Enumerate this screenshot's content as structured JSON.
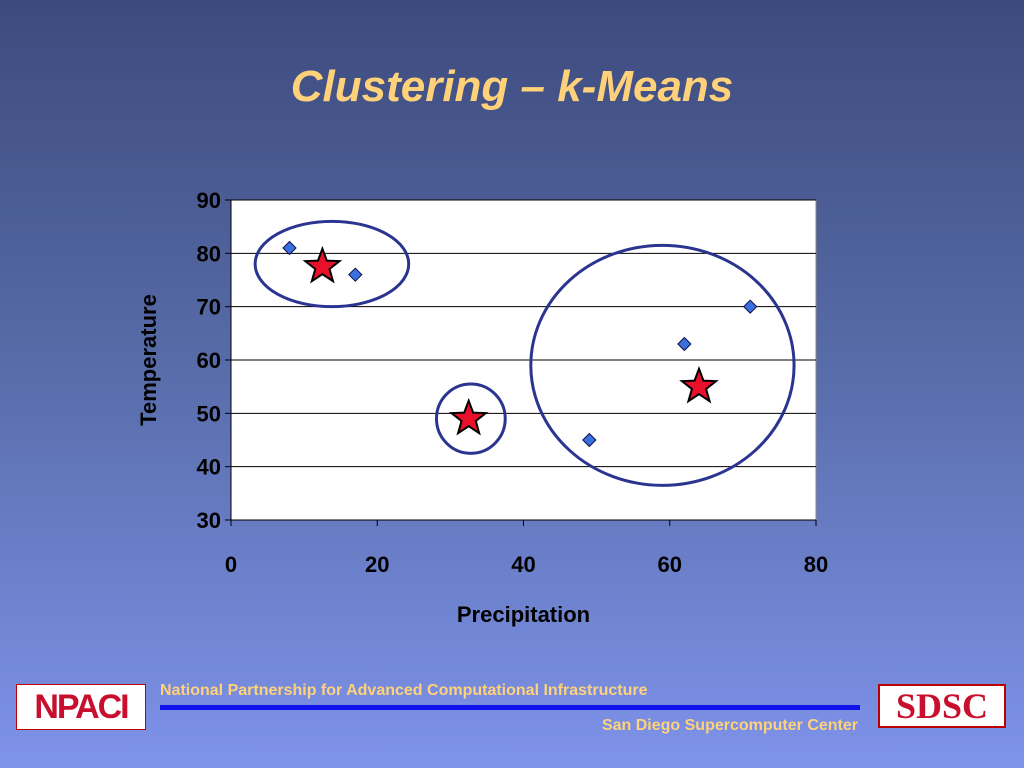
{
  "slide": {
    "title": "Clustering – k-Means",
    "footer_line1": "National Partnership for Advanced Computational Infrastructure",
    "footer_line2": "San Diego Supercomputer Center",
    "logo_left": "NPACI",
    "logo_right": "SDSC"
  },
  "colors": {
    "title": "#ffd27a",
    "point": "#3a6fe0",
    "star": "#e8102a",
    "circle": "#2b3590",
    "rule": "#1111ee"
  },
  "chart_data": {
    "type": "scatter",
    "xlabel": "Precipitation",
    "ylabel": "Temperature",
    "xlim": [
      0,
      80
    ],
    "ylim": [
      30,
      90
    ],
    "x_ticks": [
      0,
      20,
      40,
      60,
      80
    ],
    "y_ticks": [
      30,
      40,
      50,
      60,
      70,
      80,
      90
    ],
    "grid": "horizontal",
    "points": [
      {
        "x": 8,
        "y": 81
      },
      {
        "x": 17,
        "y": 76
      },
      {
        "x": 49,
        "y": 45
      },
      {
        "x": 62,
        "y": 63
      },
      {
        "x": 71,
        "y": 70
      }
    ],
    "centroids": [
      {
        "x": 12.5,
        "y": 77.5
      },
      {
        "x": 32.5,
        "y": 49
      },
      {
        "x": 64,
        "y": 55
      }
    ],
    "clusters": [
      {
        "cx": 13.8,
        "cy": 78,
        "rx": 10.5,
        "ry": 8
      },
      {
        "cx": 32.8,
        "cy": 49,
        "rx": 4.7,
        "ry": 6.5
      },
      {
        "cx": 59,
        "cy": 59,
        "rx": 18,
        "ry": 22.5
      }
    ]
  }
}
